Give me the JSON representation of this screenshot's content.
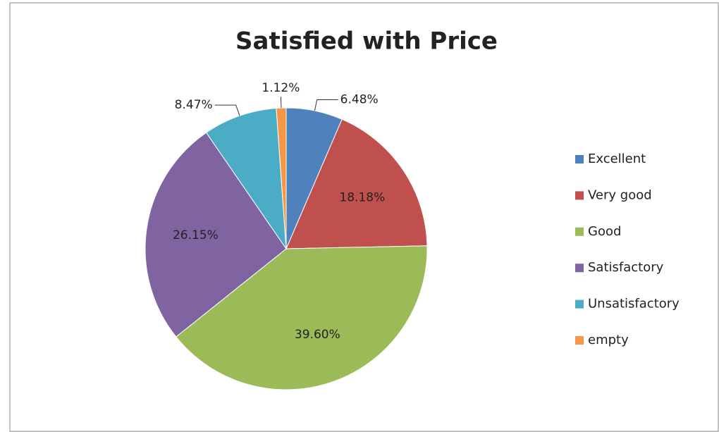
{
  "chart_data": {
    "type": "pie",
    "title": "Satisfied with Price",
    "categories": [
      "Excellent",
      "Very good",
      "Good",
      "Satisfactory",
      "Unsatisfactory",
      "empty"
    ],
    "values": [
      6.48,
      18.18,
      39.6,
      26.15,
      8.47,
      1.12
    ],
    "value_labels": [
      "6.48%",
      "18.18%",
      "39.60%",
      "26.15%",
      "8.47%",
      "1.12%"
    ],
    "colors": [
      "#4f81bd",
      "#c0504d",
      "#9bbb59",
      "#8064a2",
      "#4bacc6",
      "#f79646"
    ],
    "legend": "right"
  }
}
